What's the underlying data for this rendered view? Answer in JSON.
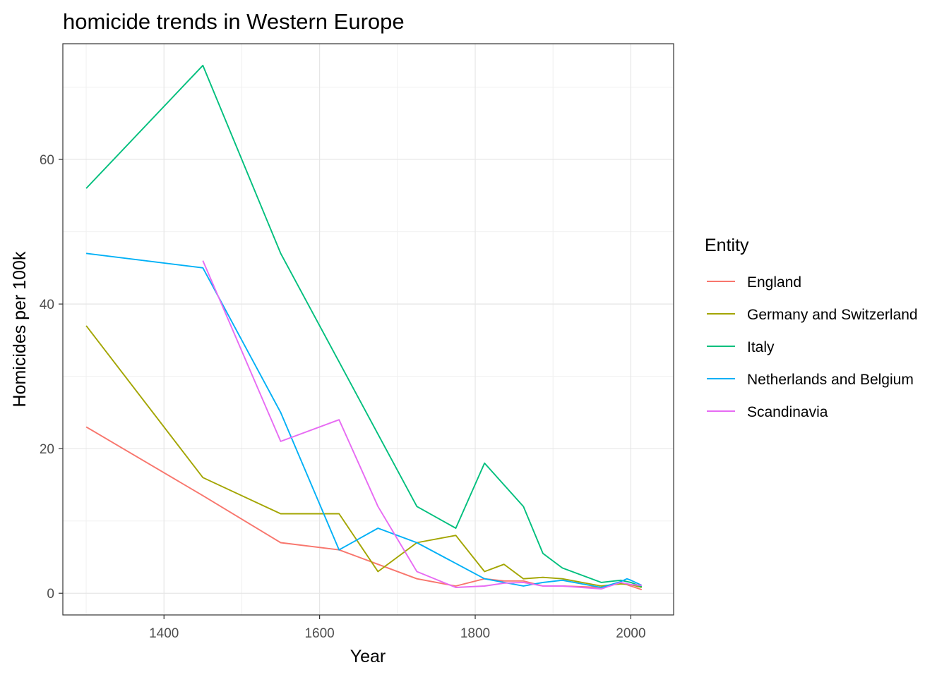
{
  "chart_data": {
    "type": "line",
    "title": "homicide trends in Western Europe",
    "xlabel": "Year",
    "ylabel": "Homicides per 100k",
    "xlim": [
      1270,
      2055
    ],
    "ylim": [
      -3,
      76
    ],
    "x_ticks": [
      1400,
      1600,
      1800,
      2000
    ],
    "y_ticks": [
      0,
      20,
      40,
      60
    ],
    "x_ticks_minor": [
      1300,
      1500,
      1700,
      1900
    ],
    "y_ticks_minor": [
      10,
      30,
      50,
      70
    ],
    "grid": true,
    "legend_title": "Entity",
    "legend_position": "right",
    "series": [
      {
        "name": "England",
        "color": "#F8766D",
        "x": [
          1300,
          1450,
          1550,
          1625,
          1675,
          1725,
          1775,
          1812,
          1837,
          1862,
          1887,
          1912,
          1962,
          1987,
          2000,
          2014
        ],
        "y": [
          23,
          13.5,
          7,
          6,
          4,
          2,
          1,
          2,
          1.7,
          1.7,
          1,
          1,
          0.8,
          1.5,
          1,
          0.5
        ]
      },
      {
        "name": "Germany and Switzerland",
        "color": "#A3A500",
        "x": [
          1300,
          1450,
          1550,
          1625,
          1675,
          1725,
          1775,
          1812,
          1837,
          1862,
          1887,
          1912,
          1962,
          1987,
          2000,
          2014
        ],
        "y": [
          37,
          16,
          11,
          11,
          3,
          7,
          8,
          3,
          4,
          2,
          2.2,
          2,
          1,
          1.3,
          1.2,
          0.8
        ]
      },
      {
        "name": "Italy",
        "color": "#00BF7D",
        "x": [
          1300,
          1450,
          1550,
          1625,
          1725,
          1775,
          1812,
          1862,
          1887,
          1912,
          1962,
          1987,
          2000,
          2014
        ],
        "y": [
          56,
          73,
          47,
          32,
          12,
          9,
          18,
          12,
          5.5,
          3.5,
          1.5,
          1.8,
          1.5,
          0.9
        ]
      },
      {
        "name": "Netherlands and Belgium",
        "color": "#00B0F6",
        "x": [
          1300,
          1450,
          1550,
          1625,
          1675,
          1725,
          1812,
          1862,
          1887,
          1912,
          1962,
          1987,
          1995,
          2000,
          2014
        ],
        "y": [
          47,
          45,
          25,
          6,
          9,
          7,
          2,
          1,
          1.5,
          1.8,
          0.8,
          1.6,
          2,
          1.8,
          1.1
        ]
      },
      {
        "name": "Scandinavia",
        "color": "#E76BF3",
        "x": [
          1450,
          1550,
          1625,
          1675,
          1725,
          1775,
          1812,
          1837,
          1862,
          1887,
          1912,
          1962,
          1987,
          2000,
          2014
        ],
        "y": [
          46,
          21,
          24,
          12,
          3,
          0.8,
          1,
          1.4,
          1.5,
          1,
          1,
          0.6,
          1.5,
          1.2,
          1.1
        ]
      }
    ]
  }
}
